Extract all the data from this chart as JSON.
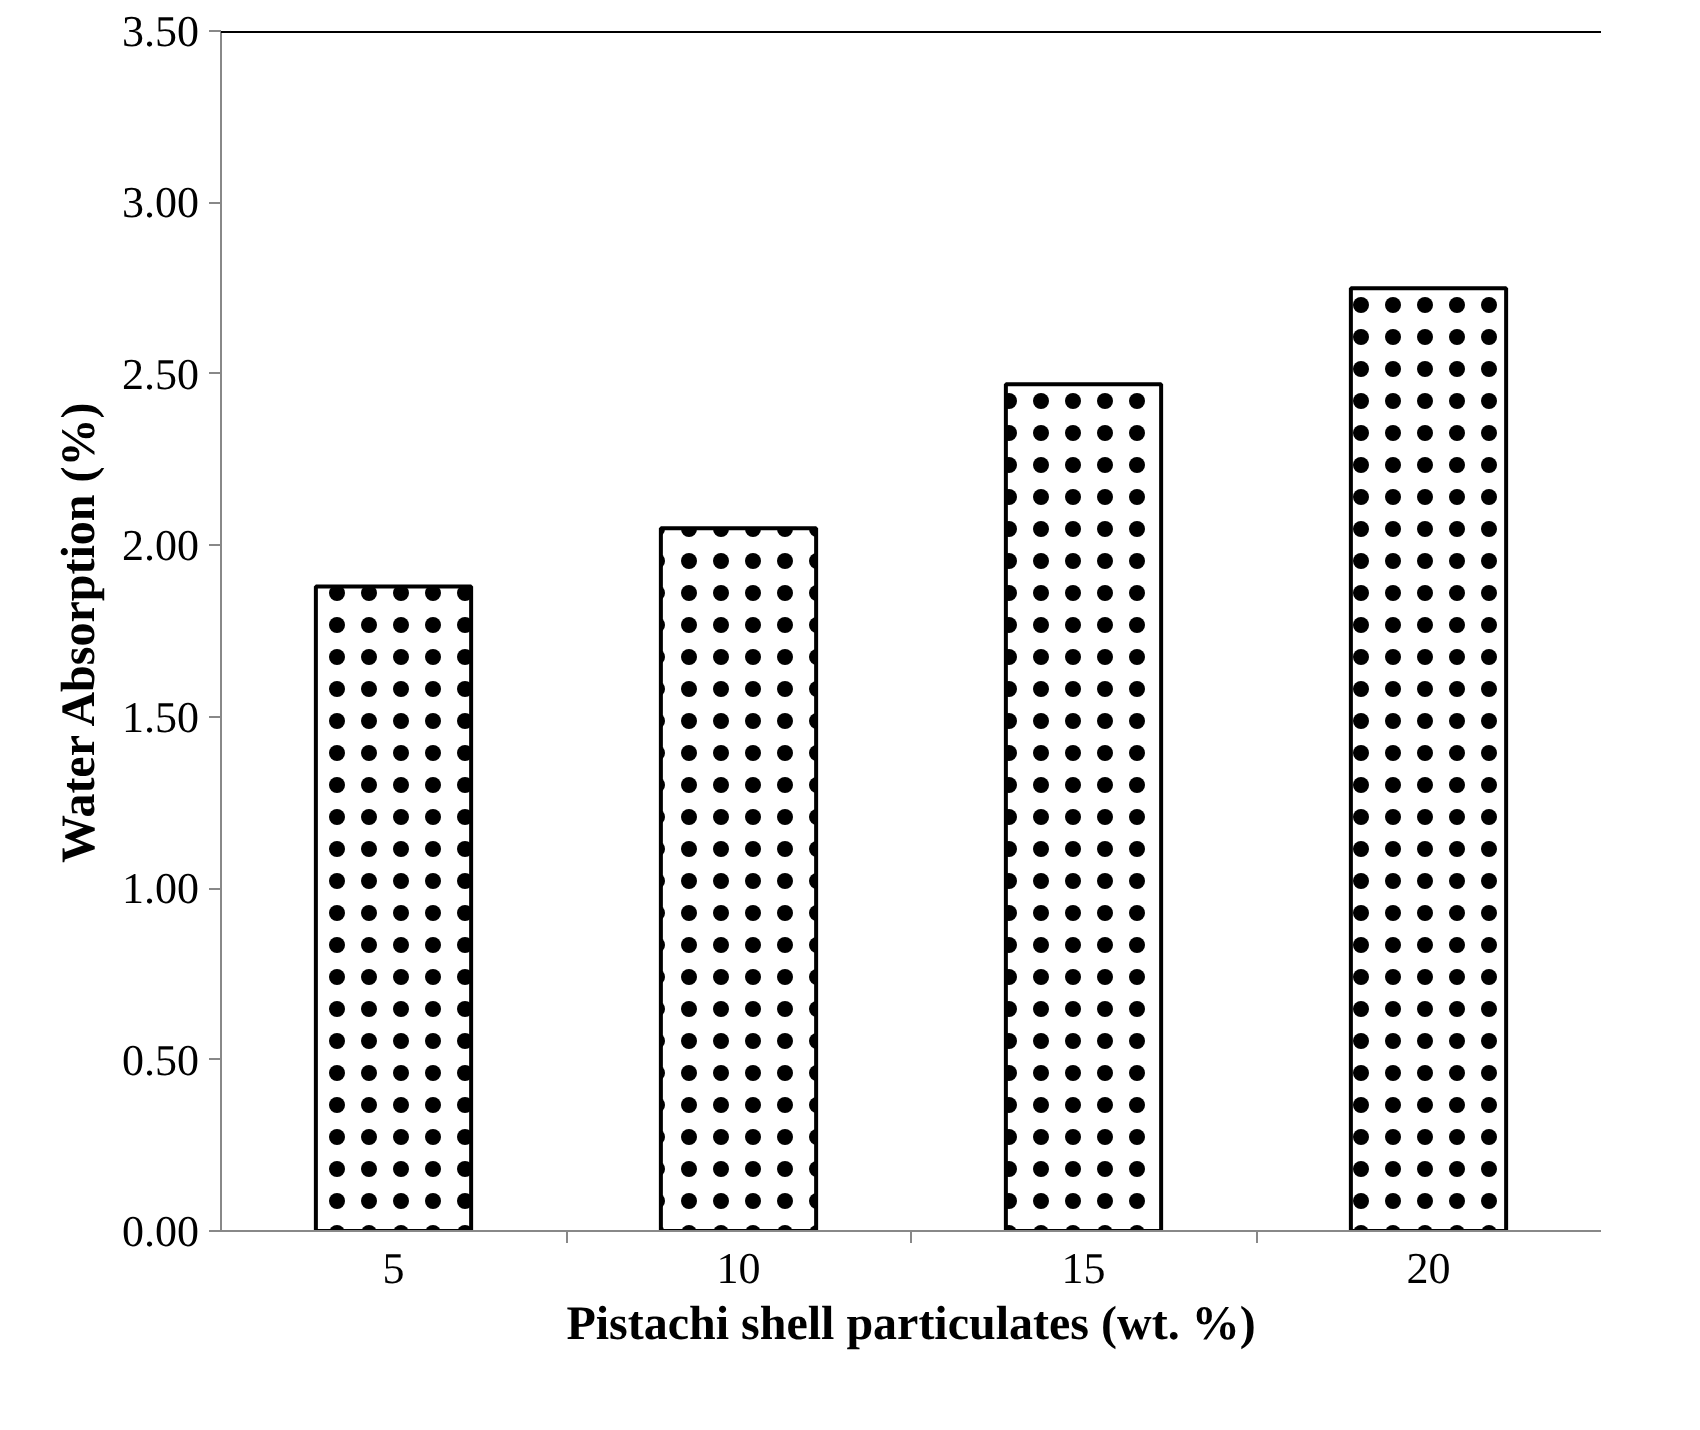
{
  "chart_data": {
    "type": "bar",
    "xlabel": "Pistachi shell particulates (wt. %)",
    "ylabel": "Water Absorption (%)",
    "categories": [
      "5",
      "10",
      "15",
      "20"
    ],
    "values": [
      1.88,
      2.05,
      2.47,
      2.75
    ],
    "color": "#ffffff",
    "ylim": [
      0,
      3.5
    ],
    "yticks": [
      {
        "value": 0,
        "label": "0.00"
      },
      {
        "value": 0.5,
        "label": "0.50"
      },
      {
        "value": 1,
        "label": "1.00"
      },
      {
        "value": 1.5,
        "label": "1.50"
      },
      {
        "value": 2,
        "label": "2.00"
      },
      {
        "value": 2.5,
        "label": "2.50"
      },
      {
        "value": 3,
        "label": "3.00"
      },
      {
        "value": 3.5,
        "label": "3.50"
      }
    ],
    "grid": false
  }
}
